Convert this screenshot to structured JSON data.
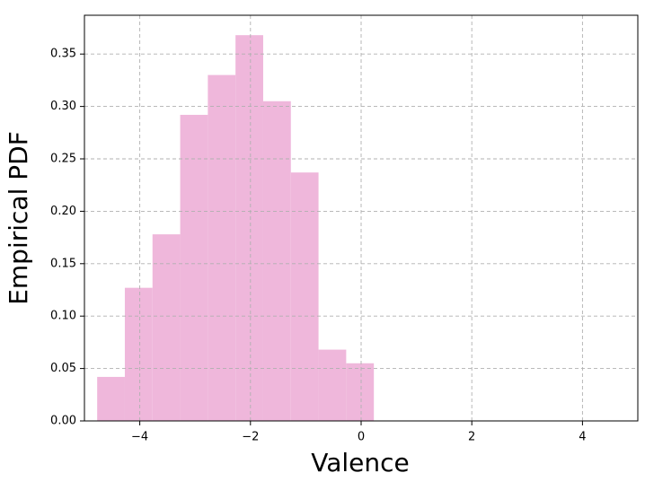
{
  "chart_data": {
    "type": "histogram",
    "x_label": "Valence",
    "y_label": "Empirical PDF",
    "bins": [
      -4.77,
      -4.27,
      -3.77,
      -3.27,
      -2.77,
      -2.27,
      -1.77,
      -1.27,
      -0.77,
      -0.27,
      0.23
    ],
    "values": [
      0.042,
      0.127,
      0.178,
      0.292,
      0.33,
      0.368,
      0.305,
      0.237,
      0.068,
      0.055
    ],
    "color": "#efb7db",
    "xlim": [
      -5,
      5
    ],
    "xticks": [
      {
        "value": -4,
        "label": "−4"
      },
      {
        "value": -2,
        "label": "−2"
      },
      0,
      2,
      4
    ],
    "ylim": [
      0,
      0.387
    ],
    "yticks": [
      {
        "value": 0,
        "label": "0.00"
      },
      {
        "value": 0.05,
        "label": "0.05"
      },
      {
        "value": 0.1,
        "label": "0.10"
      },
      {
        "value": 0.15,
        "label": "0.15"
      },
      {
        "value": 0.2,
        "label": "0.20"
      },
      {
        "value": 0.25,
        "label": "0.25"
      },
      {
        "value": 0.3,
        "label": "0.30"
      },
      {
        "value": 0.35,
        "label": "0.35"
      }
    ],
    "grid": true
  }
}
